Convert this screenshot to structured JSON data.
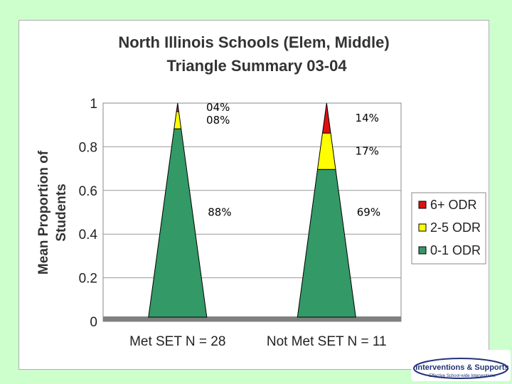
{
  "chart_data": {
    "type": "area",
    "title": "North Illinois Schools (Elem, Middle)",
    "subtitle": "Triangle Summary 03-04",
    "ylabel_line1": "Mean Proportion of",
    "ylabel_line2": "Students",
    "ylim": [
      0,
      1
    ],
    "yticks": [
      "0",
      "0.2",
      "0.4",
      "0.6",
      "0.8",
      "1"
    ],
    "ytick_values": [
      0,
      0.2,
      0.4,
      0.6,
      0.8,
      1
    ],
    "grid": true,
    "legend_position": "right",
    "categories": [
      "Met SET N = 28",
      "Not Met SET N = 11"
    ],
    "series": [
      {
        "name": "0-1 ODR",
        "color": "#339966",
        "values": [
          0.88,
          0.69
        ]
      },
      {
        "name": "2-5 ODR",
        "color": "#ffff00",
        "values": [
          0.08,
          0.17
        ]
      },
      {
        "name": "6+ ODR",
        "color": "#dd1111",
        "values": [
          0.04,
          0.14
        ]
      }
    ],
    "data_labels": [
      {
        "category": 0,
        "series": "6+ ODR",
        "text": "04%"
      },
      {
        "category": 0,
        "series": "2-5 ODR",
        "text": "08%"
      },
      {
        "category": 0,
        "series": "0-1 ODR",
        "text": "88%"
      },
      {
        "category": 1,
        "series": "6+ ODR",
        "text": "14%"
      },
      {
        "category": 1,
        "series": "2-5 ODR",
        "text": "17%"
      },
      {
        "category": 1,
        "series": "0-1 ODR",
        "text": "69%"
      }
    ],
    "legend_order": [
      "6+ ODR",
      "2-5 ODR",
      "0-1 ODR"
    ]
  },
  "logo": {
    "line1": "Interventions & Supports",
    "line2": "Effective School-wide Interventions"
  }
}
